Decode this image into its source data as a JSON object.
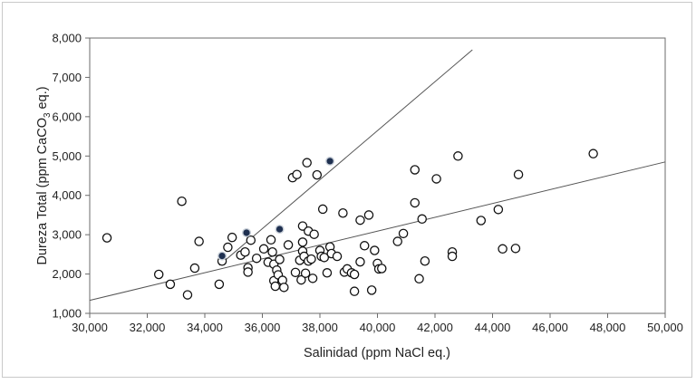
{
  "chart_data": {
    "type": "scatter",
    "xlabel": "Salinidad (ppm  NaCl eq.)",
    "ylabel_parts": [
      "Dureza Total (ppm CaCO",
      "3",
      " eq.)"
    ],
    "xlim": [
      30000,
      50000
    ],
    "ylim": [
      1000,
      8000
    ],
    "x_ticks": [
      30000,
      32000,
      34000,
      36000,
      38000,
      40000,
      42000,
      44000,
      46000,
      48000,
      50000
    ],
    "y_ticks": [
      1000,
      2000,
      3000,
      4000,
      5000,
      6000,
      7000,
      8000
    ],
    "x_tick_labels": [
      "30,000",
      "32,000",
      "34,000",
      "36,000",
      "38,000",
      "40,000",
      "42,000",
      "44,000",
      "46,000",
      "48,000",
      "50,000"
    ],
    "y_tick_labels": [
      "1,000",
      "2,000",
      "3,000",
      "4,000",
      "5,000",
      "6,000",
      "7,000",
      "8,000"
    ],
    "grid": false,
    "colors": {
      "open_marker": "#ffffff",
      "filled_marker": "#1f3050",
      "line": "#555555"
    },
    "series": [
      {
        "marker": "open",
        "points": [
          [
            30600,
            2920
          ],
          [
            32400,
            1990
          ],
          [
            32800,
            1740
          ],
          [
            33200,
            3850
          ],
          [
            33400,
            1470
          ],
          [
            33650,
            2150
          ],
          [
            33800,
            2830
          ],
          [
            34500,
            1740
          ],
          [
            34600,
            2330
          ],
          [
            34800,
            2680
          ],
          [
            34950,
            2930
          ],
          [
            35250,
            2480
          ],
          [
            35400,
            2560
          ],
          [
            35500,
            2160
          ],
          [
            35500,
            2050
          ],
          [
            35600,
            2860
          ],
          [
            35800,
            2400
          ],
          [
            36050,
            2640
          ],
          [
            36200,
            2300
          ],
          [
            36300,
            2870
          ],
          [
            36350,
            2560
          ],
          [
            36400,
            2250
          ],
          [
            36400,
            1830
          ],
          [
            36450,
            1690
          ],
          [
            36500,
            2100
          ],
          [
            36550,
            1980
          ],
          [
            36600,
            2370
          ],
          [
            36700,
            1840
          ],
          [
            36750,
            1660
          ],
          [
            36900,
            2740
          ],
          [
            37050,
            4450
          ],
          [
            37150,
            2040
          ],
          [
            37200,
            4530
          ],
          [
            37300,
            2350
          ],
          [
            37350,
            1850
          ],
          [
            37400,
            3220
          ],
          [
            37400,
            2810
          ],
          [
            37400,
            2580
          ],
          [
            37450,
            2450
          ],
          [
            37500,
            2020
          ],
          [
            37550,
            4830
          ],
          [
            37600,
            3090
          ],
          [
            37600,
            2330
          ],
          [
            37700,
            2380
          ],
          [
            37750,
            1890
          ],
          [
            37800,
            3010
          ],
          [
            37900,
            4520
          ],
          [
            38000,
            2600
          ],
          [
            38050,
            2450
          ],
          [
            38100,
            3650
          ],
          [
            38150,
            2420
          ],
          [
            38250,
            2030
          ],
          [
            38350,
            2690
          ],
          [
            38400,
            2520
          ],
          [
            38600,
            2450
          ],
          [
            38800,
            3550
          ],
          [
            38850,
            2050
          ],
          [
            38950,
            2130
          ],
          [
            39100,
            2030
          ],
          [
            39200,
            1560
          ],
          [
            39200,
            1990
          ],
          [
            39400,
            2310
          ],
          [
            39400,
            3370
          ],
          [
            39550,
            2720
          ],
          [
            39700,
            3500
          ],
          [
            39800,
            1590
          ],
          [
            39900,
            2600
          ],
          [
            40000,
            2270
          ],
          [
            40050,
            2130
          ],
          [
            40150,
            2140
          ],
          [
            40700,
            2830
          ],
          [
            40900,
            3030
          ],
          [
            41300,
            4650
          ],
          [
            41300,
            3810
          ],
          [
            41450,
            1880
          ],
          [
            41550,
            3400
          ],
          [
            41650,
            2330
          ],
          [
            42050,
            4420
          ],
          [
            42600,
            2560
          ],
          [
            42600,
            2450
          ],
          [
            42800,
            5000
          ],
          [
            43600,
            3360
          ],
          [
            44200,
            3640
          ],
          [
            44350,
            2640
          ],
          [
            44800,
            2650
          ],
          [
            44900,
            4530
          ],
          [
            47500,
            5060
          ]
        ]
      },
      {
        "marker": "filled",
        "points": [
          [
            34600,
            2460
          ],
          [
            35450,
            3050
          ],
          [
            36600,
            3140
          ],
          [
            38350,
            4870
          ]
        ]
      }
    ],
    "lines": [
      {
        "x": [
          30000,
          50000
        ],
        "y": [
          1330,
          4850
        ]
      },
      {
        "x": [
          34500,
          43300
        ],
        "y": [
          2220,
          7700
        ]
      }
    ]
  }
}
